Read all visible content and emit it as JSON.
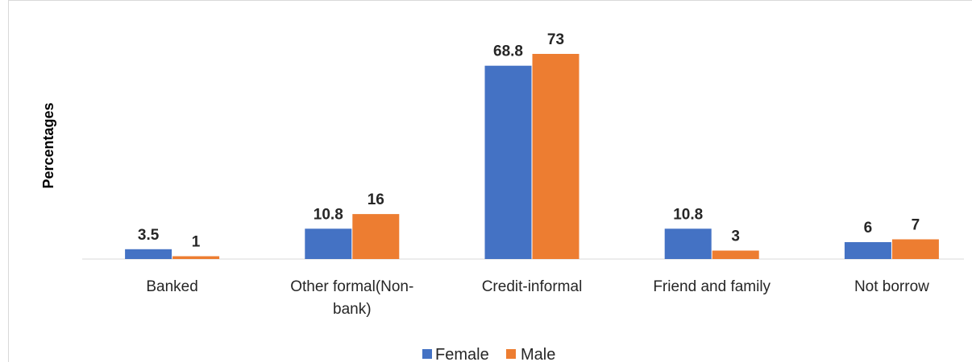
{
  "chart_data": {
    "type": "bar",
    "title": "",
    "xlabel": "",
    "ylabel": "Percentages",
    "categories": [
      [
        "Banked"
      ],
      [
        "Other formal(Non-",
        "bank)"
      ],
      [
        "Credit-informal"
      ],
      [
        "Friend and family"
      ],
      [
        "Not borrow"
      ]
    ],
    "series": [
      {
        "name": "Female",
        "color": "#4472C4",
        "values": [
          3.5,
          10.8,
          68.8,
          10.8,
          6
        ],
        "labels": [
          "3.5",
          "10.8",
          "68.8",
          "10.8",
          "6"
        ]
      },
      {
        "name": "Male",
        "color": "#ED7D31",
        "values": [
          1,
          16,
          73,
          3,
          7
        ],
        "labels": [
          "1",
          "16",
          "73",
          "3",
          "7"
        ]
      }
    ],
    "ylim": [
      0,
      75
    ],
    "grid": false,
    "legend": "bottom-center"
  }
}
